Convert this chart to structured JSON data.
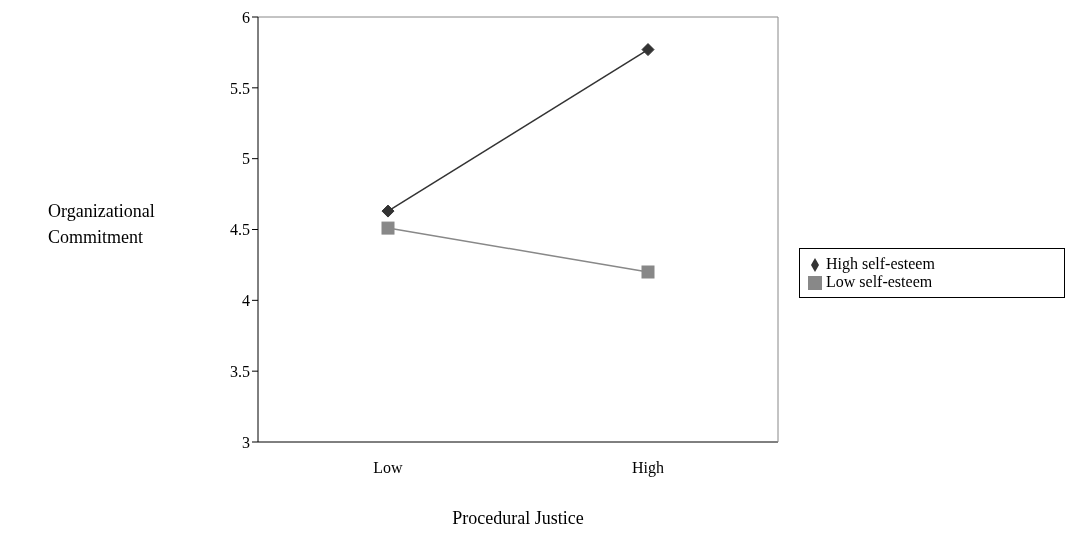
{
  "chart_data": {
    "type": "line",
    "xlabel": "Procedural Justice",
    "ylabel": "Organizational Commitment",
    "categories": [
      "Low",
      "High"
    ],
    "series": [
      {
        "name": "High self-esteem",
        "color": "#333333",
        "marker": "diamond",
        "values": [
          4.63,
          5.77
        ]
      },
      {
        "name": "Low self-esteem",
        "color": "#888888",
        "marker": "square",
        "values": [
          4.51,
          4.2
        ]
      }
    ],
    "ylim": [
      3,
      6
    ],
    "yticks": [
      3,
      3.5,
      4,
      4.5,
      5,
      5.5,
      6
    ],
    "legend": "right",
    "grid": false
  }
}
